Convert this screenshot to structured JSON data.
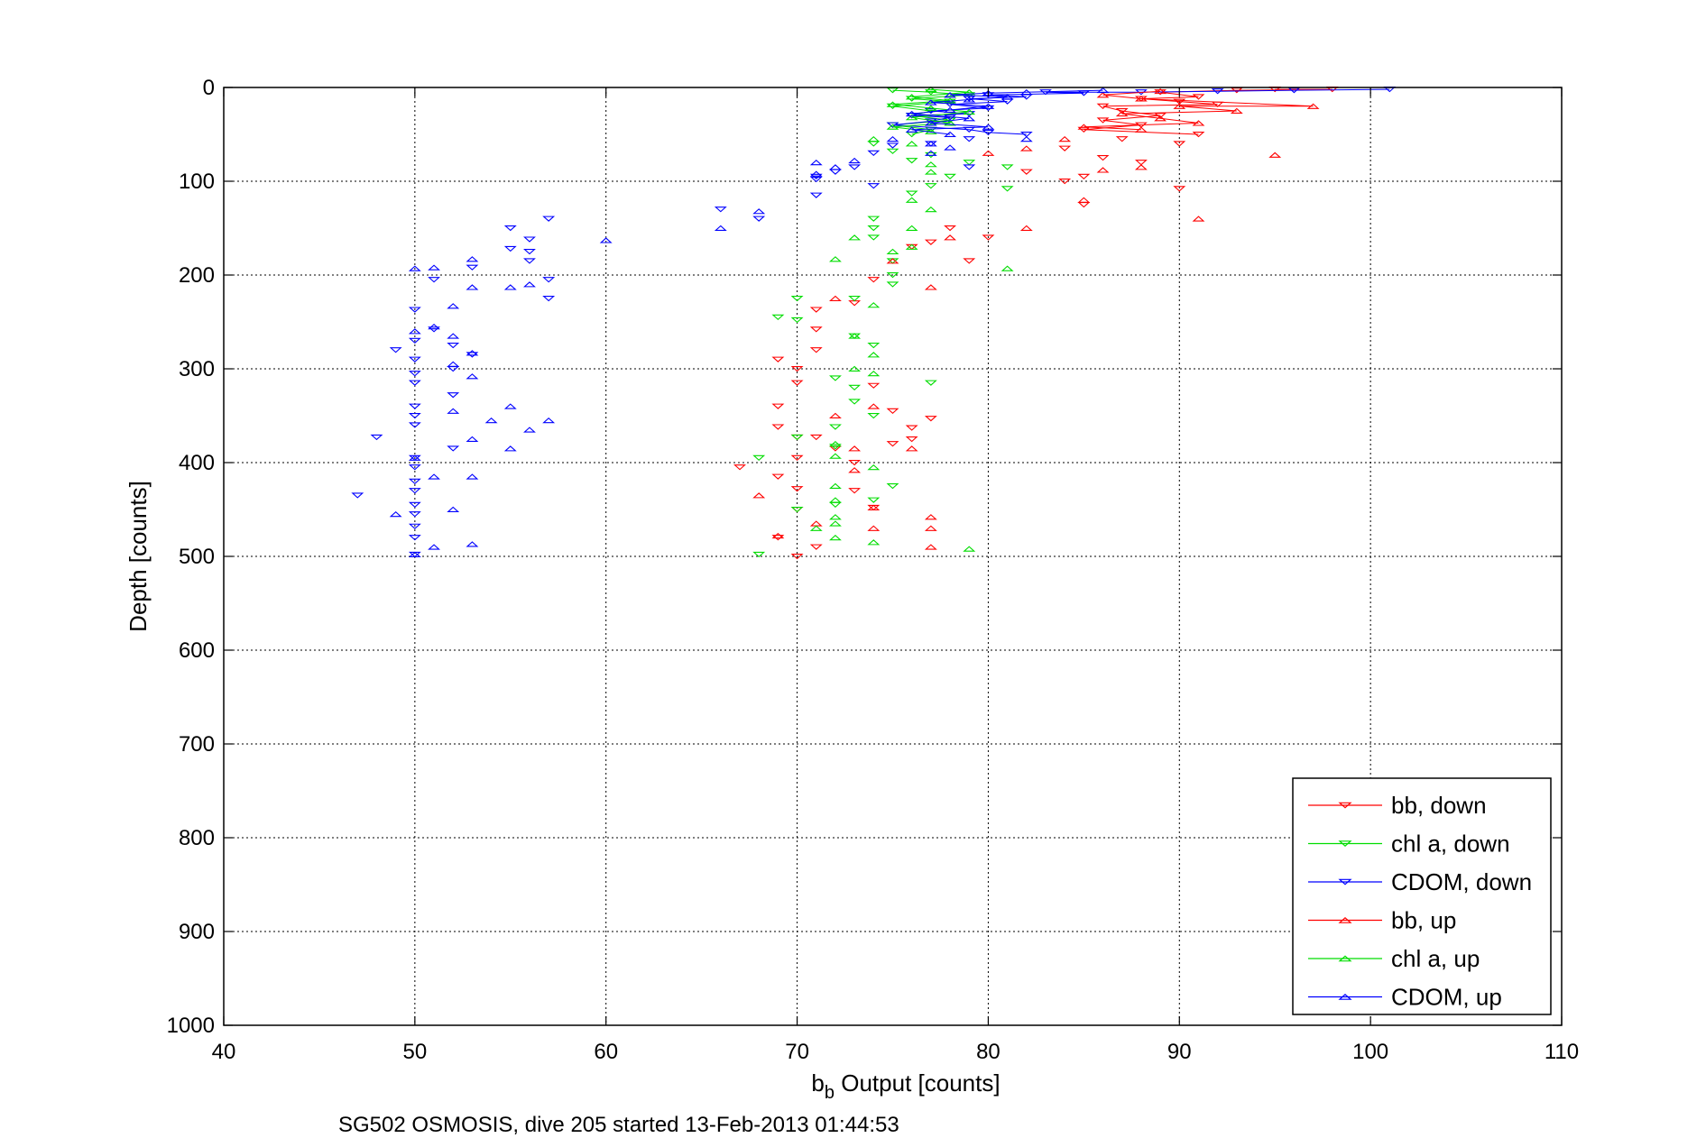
{
  "chart_data": {
    "type": "scatter",
    "xlabel_main": "b",
    "xlabel_sub": "b",
    "xlabel_rest": " Output [counts]",
    "ylabel": "Depth [counts]",
    "caption": "SG502 OSMOSIS, dive 205 started 13-Feb-2013 01:44:53",
    "xlim": [
      40,
      110
    ],
    "ylim": [
      0,
      1000
    ],
    "y_reversed": true,
    "grid": true,
    "legend_position": "bottom-right",
    "x_ticks": [
      "40",
      "50",
      "60",
      "70",
      "80",
      "90",
      "100",
      "110"
    ],
    "y_ticks": [
      "0",
      "100",
      "200",
      "300",
      "400",
      "500",
      "600",
      "700",
      "800",
      "900",
      "1000"
    ],
    "series": [
      {
        "name": "bb, down",
        "color": "#ff0000",
        "marker": "triangle-down",
        "points": [
          [
            89,
            5
          ],
          [
            93,
            3
          ],
          [
            95,
            2
          ],
          [
            98,
            2
          ],
          [
            91,
            10
          ],
          [
            88,
            12
          ],
          [
            90,
            15
          ],
          [
            86,
            20
          ],
          [
            92,
            18
          ],
          [
            87,
            25
          ],
          [
            89,
            30
          ],
          [
            86,
            35
          ],
          [
            88,
            40
          ],
          [
            85,
            45
          ],
          [
            91,
            50
          ],
          [
            87,
            55
          ],
          [
            90,
            60
          ],
          [
            84,
            65
          ],
          [
            86,
            75
          ],
          [
            88,
            80
          ],
          [
            85,
            95
          ],
          [
            84,
            100
          ],
          [
            82,
            90
          ],
          [
            85,
            125
          ],
          [
            90,
            108
          ],
          [
            80,
            160
          ],
          [
            79,
            185
          ],
          [
            78,
            150
          ],
          [
            77,
            165
          ],
          [
            76,
            170
          ],
          [
            74,
            205
          ],
          [
            73,
            230
          ],
          [
            71,
            237
          ],
          [
            71,
            258
          ],
          [
            71,
            280
          ],
          [
            69,
            290
          ],
          [
            70,
            300
          ],
          [
            70,
            315
          ],
          [
            69,
            340
          ],
          [
            69,
            362
          ],
          [
            70,
            373
          ],
          [
            71,
            373
          ],
          [
            72,
            385
          ],
          [
            73,
            400
          ],
          [
            70,
            395
          ],
          [
            67,
            405
          ],
          [
            69,
            415
          ],
          [
            70,
            428
          ],
          [
            70,
            450
          ],
          [
            69,
            480
          ],
          [
            71,
            490
          ],
          [
            70,
            500
          ],
          [
            74,
            318
          ],
          [
            75,
            345
          ],
          [
            76,
            363
          ],
          [
            76,
            375
          ],
          [
            77,
            353
          ],
          [
            73,
            430
          ],
          [
            74,
            448
          ],
          [
            75,
            380
          ]
        ]
      },
      {
        "name": "chl a, down",
        "color": "#00dd00",
        "marker": "triangle-down",
        "points": [
          [
            75,
            3
          ],
          [
            77,
            5
          ],
          [
            79,
            8
          ],
          [
            76,
            12
          ],
          [
            78,
            15
          ],
          [
            75,
            20
          ],
          [
            77,
            25
          ],
          [
            76,
            30
          ],
          [
            78,
            35
          ],
          [
            75,
            40
          ],
          [
            77,
            45
          ],
          [
            76,
            50
          ],
          [
            74,
            60
          ],
          [
            75,
            68
          ],
          [
            77,
            72
          ],
          [
            76,
            78
          ],
          [
            79,
            80
          ],
          [
            81,
            85
          ],
          [
            78,
            95
          ],
          [
            77,
            105
          ],
          [
            81,
            108
          ],
          [
            76,
            113
          ],
          [
            74,
            140
          ],
          [
            74,
            150
          ],
          [
            74,
            160
          ],
          [
            75,
            185
          ],
          [
            75,
            200
          ],
          [
            75,
            210
          ],
          [
            73,
            225
          ],
          [
            70,
            225
          ],
          [
            69,
            245
          ],
          [
            70,
            248
          ],
          [
            73,
            265
          ],
          [
            74,
            275
          ],
          [
            72,
            310
          ],
          [
            73,
            320
          ],
          [
            73,
            335
          ],
          [
            74,
            350
          ],
          [
            72,
            362
          ],
          [
            70,
            373
          ],
          [
            68,
            395
          ],
          [
            72,
            383
          ],
          [
            75,
            425
          ],
          [
            74,
            440
          ],
          [
            72,
            445
          ],
          [
            70,
            450
          ],
          [
            68,
            498
          ],
          [
            77,
            315
          ]
        ]
      },
      {
        "name": "CDOM, down",
        "color": "#0000ff",
        "marker": "triangle-down",
        "points": [
          [
            101,
            2
          ],
          [
            96,
            3
          ],
          [
            92,
            4
          ],
          [
            88,
            5
          ],
          [
            85,
            6
          ],
          [
            83,
            5
          ],
          [
            80,
            8
          ],
          [
            82,
            10
          ],
          [
            79,
            12
          ],
          [
            81,
            15
          ],
          [
            78,
            18
          ],
          [
            80,
            22
          ],
          [
            77,
            25
          ],
          [
            79,
            28
          ],
          [
            76,
            30
          ],
          [
            78,
            32
          ],
          [
            77,
            36
          ],
          [
            75,
            40
          ],
          [
            79,
            45
          ],
          [
            80,
            48
          ],
          [
            82,
            50
          ],
          [
            79,
            55
          ],
          [
            77,
            60
          ],
          [
            75,
            62
          ],
          [
            74,
            70
          ],
          [
            73,
            85
          ],
          [
            72,
            90
          ],
          [
            71,
            95
          ],
          [
            71,
            98
          ],
          [
            74,
            105
          ],
          [
            71,
            115
          ],
          [
            79,
            85
          ],
          [
            66,
            130
          ],
          [
            68,
            140
          ],
          [
            57,
            140
          ],
          [
            55,
            150
          ],
          [
            56,
            162
          ],
          [
            53,
            192
          ],
          [
            55,
            172
          ],
          [
            56,
            175
          ],
          [
            56,
            185
          ],
          [
            57,
            205
          ],
          [
            57,
            225
          ],
          [
            51,
            205
          ],
          [
            50,
            237
          ],
          [
            51,
            258
          ],
          [
            50,
            270
          ],
          [
            52,
            275
          ],
          [
            50,
            290
          ],
          [
            53,
            285
          ],
          [
            52,
            300
          ],
          [
            50,
            305
          ],
          [
            50,
            315
          ],
          [
            52,
            328
          ],
          [
            50,
            340
          ],
          [
            50,
            350
          ],
          [
            50,
            360
          ],
          [
            48,
            373
          ],
          [
            52,
            385
          ],
          [
            50,
            395
          ],
          [
            50,
            405
          ],
          [
            50,
            420
          ],
          [
            50,
            430
          ],
          [
            47,
            435
          ],
          [
            50,
            445
          ],
          [
            50,
            455
          ],
          [
            50,
            468
          ],
          [
            50,
            480
          ],
          [
            50,
            498
          ],
          [
            49,
            280
          ]
        ]
      },
      {
        "name": "bb, up",
        "color": "#ff0000",
        "marker": "triangle-up",
        "points": [
          [
            97,
            20
          ],
          [
            93,
            25
          ],
          [
            89,
            4
          ],
          [
            86,
            8
          ],
          [
            88,
            12
          ],
          [
            90,
            20
          ],
          [
            87,
            28
          ],
          [
            89,
            33
          ],
          [
            91,
            38
          ],
          [
            85,
            42
          ],
          [
            88,
            45
          ],
          [
            84,
            55
          ],
          [
            82,
            65
          ],
          [
            80,
            70
          ],
          [
            86,
            88
          ],
          [
            88,
            85
          ],
          [
            95,
            72
          ],
          [
            91,
            140
          ],
          [
            85,
            120
          ],
          [
            82,
            150
          ],
          [
            78,
            160
          ],
          [
            75,
            185
          ],
          [
            77,
            213
          ],
          [
            72,
            225
          ],
          [
            72,
            350
          ],
          [
            68,
            435
          ],
          [
            71,
            465
          ],
          [
            69,
            478
          ],
          [
            73,
            408
          ],
          [
            73,
            385
          ],
          [
            74,
            448
          ],
          [
            74,
            470
          ],
          [
            77,
            458
          ],
          [
            77,
            470
          ],
          [
            77,
            490
          ],
          [
            74,
            340
          ],
          [
            76,
            385
          ]
        ]
      },
      {
        "name": "chl a, up",
        "color": "#00dd00",
        "marker": "triangle-up",
        "points": [
          [
            77,
            2
          ],
          [
            79,
            5
          ],
          [
            76,
            10
          ],
          [
            78,
            14
          ],
          [
            75,
            18
          ],
          [
            77,
            22
          ],
          [
            79,
            26
          ],
          [
            76,
            32
          ],
          [
            78,
            38
          ],
          [
            75,
            42
          ],
          [
            77,
            47
          ],
          [
            74,
            55
          ],
          [
            76,
            60
          ],
          [
            77,
            82
          ],
          [
            77,
            90
          ],
          [
            77,
            130
          ],
          [
            76,
            120
          ],
          [
            76,
            150
          ],
          [
            76,
            170
          ],
          [
            75,
            175
          ],
          [
            73,
            160
          ],
          [
            72,
            183
          ],
          [
            74,
            232
          ],
          [
            73,
            265
          ],
          [
            74,
            285
          ],
          [
            73,
            300
          ],
          [
            74,
            305
          ],
          [
            72,
            380
          ],
          [
            72,
            393
          ],
          [
            74,
            405
          ],
          [
            72,
            425
          ],
          [
            72,
            440
          ],
          [
            72,
            458
          ],
          [
            72,
            465
          ],
          [
            72,
            480
          ],
          [
            71,
            470
          ],
          [
            74,
            485
          ],
          [
            81,
            193
          ],
          [
            79,
            492
          ]
        ]
      },
      {
        "name": "CDOM, up",
        "color": "#0000ff",
        "marker": "triangle-up",
        "points": [
          [
            86,
            3
          ],
          [
            82,
            5
          ],
          [
            80,
            6
          ],
          [
            78,
            8
          ],
          [
            81,
            10
          ],
          [
            79,
            13
          ],
          [
            77,
            16
          ],
          [
            80,
            20
          ],
          [
            78,
            24
          ],
          [
            76,
            28
          ],
          [
            79,
            33
          ],
          [
            77,
            38
          ],
          [
            80,
            42
          ],
          [
            76,
            45
          ],
          [
            78,
            50
          ],
          [
            75,
            55
          ],
          [
            82,
            55
          ],
          [
            77,
            60
          ],
          [
            78,
            64
          ],
          [
            77,
            70
          ],
          [
            73,
            78
          ],
          [
            71,
            80
          ],
          [
            72,
            85
          ],
          [
            71,
            92
          ],
          [
            68,
            132
          ],
          [
            66,
            150
          ],
          [
            60,
            163
          ],
          [
            53,
            183
          ],
          [
            51,
            192
          ],
          [
            50,
            193
          ],
          [
            56,
            210
          ],
          [
            53,
            213
          ],
          [
            55,
            213
          ],
          [
            52,
            233
          ],
          [
            51,
            255
          ],
          [
            50,
            260
          ],
          [
            52,
            265
          ],
          [
            53,
            283
          ],
          [
            52,
            295
          ],
          [
            53,
            308
          ],
          [
            52,
            345
          ],
          [
            54,
            355
          ],
          [
            55,
            340
          ],
          [
            56,
            365
          ],
          [
            57,
            355
          ],
          [
            53,
            375
          ],
          [
            55,
            385
          ],
          [
            50,
            395
          ],
          [
            51,
            415
          ],
          [
            53,
            415
          ],
          [
            52,
            450
          ],
          [
            49,
            455
          ],
          [
            51,
            490
          ],
          [
            53,
            487
          ],
          [
            50,
            498
          ]
        ]
      }
    ]
  }
}
